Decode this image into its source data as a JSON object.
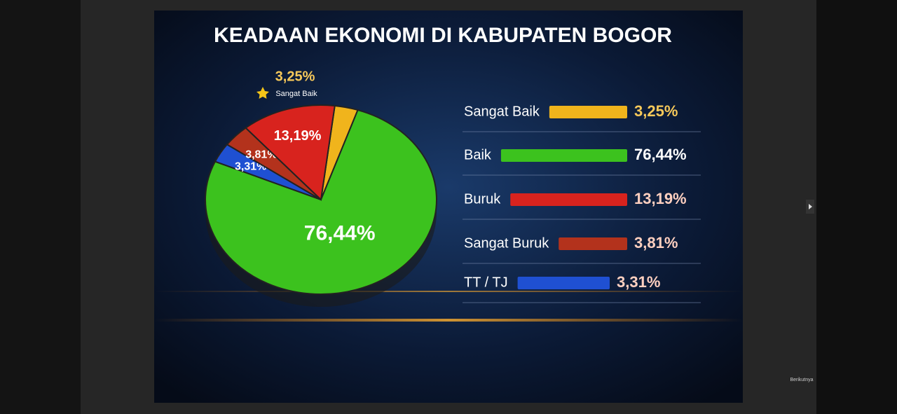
{
  "chart_data": {
    "type": "pie",
    "title": "KEADAAN EKONOMI DI KABUPATEN BOGOR",
    "categories": [
      "Sangat Baik",
      "Baik",
      "Buruk",
      "Sangat Buruk",
      "TT / TJ"
    ],
    "values": [
      3.25,
      76.44,
      13.19,
      3.81,
      3.31
    ],
    "value_labels": [
      "3,25%",
      "76,44%",
      "13,19%",
      "3,81%",
      "3,31%"
    ],
    "colors": [
      "#f0b41c",
      "#3cc21e",
      "#d8231e",
      "#b3321c",
      "#1f50d2"
    ]
  },
  "player": {
    "next_button": "Berikutnya"
  }
}
